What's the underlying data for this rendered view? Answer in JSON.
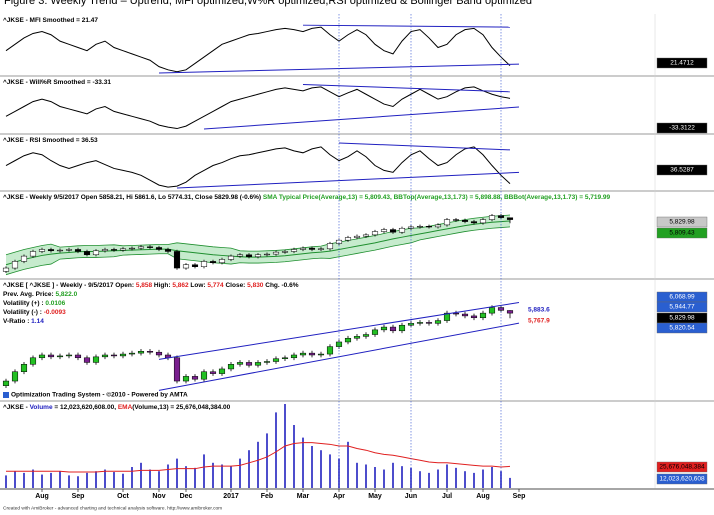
{
  "title": "Figure 3: Weekly Trend – Uptrend, MFI optimized,W%R optimized,RSI optimized & Bollinger Band optimized",
  "footer": "Created with AmiBroker - advanced charting and technical analysis software. http://www.amibroker.com",
  "x_axis": {
    "xticks": [
      {
        "value": 4,
        "label": "Aug"
      },
      {
        "value": 8,
        "label": "Sep"
      },
      {
        "value": 13,
        "label": "Oct"
      },
      {
        "value": 17,
        "label": "Nov"
      },
      {
        "value": 20,
        "label": "Dec"
      },
      {
        "value": 25,
        "label": "2017"
      },
      {
        "value": 29,
        "label": "Feb"
      },
      {
        "value": 33,
        "label": "Mar"
      },
      {
        "value": 37,
        "label": "Apr"
      },
      {
        "value": 41,
        "label": "May"
      },
      {
        "value": 45,
        "label": "Jun"
      },
      {
        "value": 49,
        "label": "Jul"
      },
      {
        "value": 53,
        "label": "Aug"
      },
      {
        "value": 57,
        "label": "Sep"
      }
    ],
    "vertical_markers": [
      37,
      45,
      55
    ]
  },
  "chart_data": [
    {
      "type": "line",
      "header": [
        [
          {
            "text": "^JKSE - MFI Smoothed = 21.47",
            "color": "#000000"
          }
        ]
      ],
      "color": "#000000",
      "ylim": [
        10,
        90
      ],
      "values": [
        45,
        55,
        65,
        72,
        75,
        70,
        60,
        55,
        50,
        45,
        55,
        60,
        50,
        45,
        40,
        35,
        30,
        20,
        15,
        12,
        15,
        25,
        35,
        45,
        55,
        60,
        65,
        70,
        72,
        75,
        78,
        80,
        78,
        75,
        80,
        82,
        70,
        60,
        70,
        78,
        70,
        55,
        45,
        40,
        60,
        75,
        78,
        65,
        50,
        55,
        70,
        78,
        80,
        70,
        50,
        35,
        21.47
      ],
      "trendlines": [
        {
          "x": [
            17,
            57
          ],
          "y": [
            10,
            24
          ]
        },
        {
          "x": [
            33,
            56
          ],
          "y": [
            85,
            82
          ]
        }
      ],
      "boxes": [
        {
          "label": "21.4712",
          "color": "#000000",
          "text_color": "#ffffff"
        }
      ]
    },
    {
      "type": "line",
      "header": [
        [
          {
            "text": "^JKSE - Will%R Smoothed = -33.31",
            "color": "#000000"
          }
        ]
      ],
      "color": "#000000",
      "ylim": [
        -100,
        0
      ],
      "values": [
        -70,
        -60,
        -50,
        -40,
        -35,
        -40,
        -50,
        -55,
        -60,
        -65,
        -55,
        -50,
        -60,
        -65,
        -70,
        -75,
        -80,
        -88,
        -92,
        -95,
        -90,
        -80,
        -70,
        -60,
        -50,
        -40,
        -35,
        -30,
        -25,
        -20,
        -15,
        -12,
        -15,
        -18,
        -12,
        -10,
        -20,
        -30,
        -22,
        -15,
        -25,
        -35,
        -45,
        -50,
        -35,
        -25,
        -15,
        -25,
        -35,
        -30,
        -20,
        -12,
        -10,
        -18,
        -25,
        -30,
        -33.31
      ],
      "trendlines": [
        {
          "x": [
            22,
            57
          ],
          "y": [
            -96,
            -51
          ]
        },
        {
          "x": [
            33,
            56
          ],
          "y": [
            -5,
            -20
          ]
        }
      ],
      "boxes": [
        {
          "label": "-33.3122",
          "color": "#000000",
          "text_color": "#ffffff"
        }
      ]
    },
    {
      "type": "line",
      "header": [
        [
          {
            "text": "^JKSE - RSI Smoothed = 36.53",
            "color": "#000000"
          }
        ]
      ],
      "color": "#000000",
      "ylim": [
        30,
        78
      ],
      "values": [
        55,
        60,
        65,
        68,
        66,
        60,
        55,
        52,
        55,
        58,
        60,
        56,
        52,
        50,
        48,
        45,
        40,
        35,
        33,
        34,
        38,
        45,
        50,
        55,
        58,
        62,
        65,
        66,
        68,
        70,
        72,
        73,
        70,
        68,
        72,
        74,
        66,
        60,
        64,
        70,
        64,
        55,
        50,
        48,
        58,
        66,
        70,
        62,
        55,
        58,
        66,
        72,
        74,
        66,
        55,
        45,
        36.53
      ],
      "trendlines": [
        {
          "x": [
            19,
            57
          ],
          "y": [
            32,
            48
          ]
        },
        {
          "x": [
            37,
            56
          ],
          "y": [
            78,
            71
          ]
        }
      ],
      "boxes": [
        {
          "label": "36.5287",
          "color": "#000000",
          "text_color": "#ffffff"
        }
      ]
    },
    {
      "type": "candlestick",
      "header": [
        [
          {
            "text": "^JKSE - Weekly 9/5/2017 Open 5858.21, Hi 5861.6, Lo 5774.31, Close 5829.98 (-0.6%) ",
            "color": "#000000"
          },
          {
            "text": "SMA Typical Price(Average,13) = 5,809.43, ",
            "color": "#22a022"
          },
          {
            "text": "BBTop(Average,13,1.73) = 5,898.88, ",
            "color": "#22a022"
          },
          {
            "text": "BBBot(Average,13,1.73) = 5,719.99",
            "color": "#22a022"
          }
        ]
      ],
      "ylim": [
        4950,
        6050
      ],
      "up_color": "#ffffff",
      "down_color": "#000000",
      "band_color": "#b8e6c0",
      "line_color": "#1f8f2f",
      "open": [
        5050,
        5100,
        5200,
        5280,
        5350,
        5380,
        5360,
        5370,
        5380,
        5350,
        5300,
        5360,
        5380,
        5370,
        5390,
        5400,
        5420,
        5410,
        5380,
        5350,
        5100,
        5150,
        5120,
        5200,
        5180,
        5230,
        5280,
        5300,
        5270,
        5300,
        5310,
        5340,
        5350,
        5380,
        5400,
        5380,
        5390,
        5470,
        5520,
        5560,
        5580,
        5600,
        5650,
        5680,
        5640,
        5700,
        5720,
        5730,
        5720,
        5750,
        5830,
        5820,
        5800,
        5780,
        5830,
        5890,
        5858.21
      ],
      "high": [
        5125,
        5225,
        5305,
        5375,
        5405,
        5405,
        5395,
        5405,
        5405,
        5375,
        5385,
        5405,
        5405,
        5415,
        5425,
        5445,
        5445,
        5435,
        5405,
        5375,
        5175,
        5175,
        5225,
        5225,
        5255,
        5305,
        5325,
        5325,
        5325,
        5335,
        5365,
        5375,
        5405,
        5425,
        5425,
        5415,
        5495,
        5545,
        5585,
        5605,
        5625,
        5675,
        5705,
        5705,
        5725,
        5745,
        5755,
        5755,
        5775,
        5855,
        5855,
        5845,
        5825,
        5855,
        5915,
        5915,
        5861.6
      ],
      "low": [
        5025,
        5075,
        5175,
        5255,
        5325,
        5335,
        5335,
        5345,
        5325,
        5275,
        5275,
        5335,
        5345,
        5345,
        5365,
        5375,
        5385,
        5355,
        5325,
        5075,
        5075,
        5095,
        5095,
        5155,
        5155,
        5205,
        5255,
        5245,
        5245,
        5275,
        5285,
        5315,
        5325,
        5355,
        5355,
        5355,
        5365,
        5445,
        5495,
        5535,
        5555,
        5575,
        5625,
        5615,
        5615,
        5675,
        5695,
        5695,
        5695,
        5725,
        5795,
        5775,
        5755,
        5755,
        5805,
        5835,
        5774.31
      ],
      "close": [
        5100,
        5200,
        5280,
        5350,
        5380,
        5360,
        5370,
        5380,
        5350,
        5300,
        5360,
        5380,
        5370,
        5390,
        5400,
        5420,
        5410,
        5380,
        5350,
        5100,
        5150,
        5120,
        5200,
        5180,
        5230,
        5280,
        5300,
        5270,
        5300,
        5310,
        5340,
        5350,
        5380,
        5400,
        5380,
        5390,
        5470,
        5520,
        5560,
        5580,
        5600,
        5650,
        5680,
        5640,
        5700,
        5720,
        5730,
        5720,
        5750,
        5830,
        5820,
        5800,
        5780,
        5830,
        5890,
        5860,
        5829.98
      ],
      "sma": [
        5150,
        5190,
        5230,
        5260,
        5290,
        5310,
        5325,
        5335,
        5345,
        5350,
        5350,
        5355,
        5360,
        5365,
        5370,
        5375,
        5380,
        5385,
        5385,
        5360,
        5345,
        5330,
        5315,
        5300,
        5290,
        5280,
        5270,
        5265,
        5265,
        5270,
        5275,
        5285,
        5300,
        5315,
        5330,
        5340,
        5355,
        5380,
        5405,
        5430,
        5455,
        5480,
        5510,
        5540,
        5565,
        5590,
        5615,
        5640,
        5665,
        5690,
        5715,
        5740,
        5760,
        5775,
        5790,
        5800,
        5809.43
      ],
      "bb_top": [
        5300,
        5340,
        5380,
        5410,
        5440,
        5460,
        5415,
        5425,
        5435,
        5440,
        5440,
        5445,
        5450,
        5435,
        5440,
        5445,
        5450,
        5455,
        5455,
        5480,
        5465,
        5450,
        5435,
        5420,
        5410,
        5400,
        5360,
        5355,
        5355,
        5360,
        5365,
        5375,
        5390,
        5405,
        5420,
        5430,
        5465,
        5490,
        5515,
        5540,
        5565,
        5590,
        5620,
        5650,
        5675,
        5700,
        5705,
        5730,
        5755,
        5780,
        5805,
        5830,
        5850,
        5865,
        5880,
        5890,
        5898.88
      ],
      "bb_bottom": [
        5000,
        5040,
        5080,
        5110,
        5140,
        5160,
        5235,
        5245,
        5255,
        5260,
        5260,
        5265,
        5270,
        5295,
        5300,
        5305,
        5310,
        5315,
        5315,
        5240,
        5225,
        5210,
        5195,
        5180,
        5170,
        5160,
        5180,
        5175,
        5175,
        5180,
        5185,
        5195,
        5210,
        5225,
        5240,
        5250,
        5245,
        5270,
        5295,
        5320,
        5345,
        5370,
        5400,
        5430,
        5455,
        5480,
        5525,
        5550,
        5575,
        5600,
        5625,
        5650,
        5670,
        5685,
        5700,
        5710,
        5719.99
      ],
      "boxes": [
        {
          "label": "5,829.98",
          "color": "#c8c8c8",
          "text_color": "#000000"
        },
        {
          "label": "5,809.43",
          "color": "#22a022",
          "text_color": "#000000"
        }
      ]
    },
    {
      "type": "candlestick",
      "header": [
        [
          {
            "text": "^JKSE [ ^JKSE ] - Weekly - 9/5/2017 Open: ",
            "color": "#000000"
          },
          {
            "text": "5,858",
            "color": "#e02020"
          },
          {
            "text": " High: ",
            "color": "#000000"
          },
          {
            "text": "5,862",
            "color": "#e02020"
          },
          {
            "text": " Low: ",
            "color": "#000000"
          },
          {
            "text": "5,774",
            "color": "#e02020"
          },
          {
            "text": " Close: ",
            "color": "#000000"
          },
          {
            "text": "5,830",
            "color": "#e02020"
          },
          {
            "text": " Chg. -0.6%",
            "color": "#000000"
          }
        ],
        [
          {
            "text": "Prev. Avg. Price: ",
            "color": "#000000"
          },
          {
            "text": "5,822.0",
            "color": "#22a022"
          }
        ],
        [
          {
            "text": "Volatility (+) : ",
            "color": "#000000"
          },
          {
            "text": "0.0106",
            "color": "#22a022"
          }
        ],
        [
          {
            "text": "Volatility (-) : ",
            "color": "#000000"
          },
          {
            "text": "-0.0093",
            "color": "#e02020"
          }
        ],
        [
          {
            "text": "V-Ratio : ",
            "color": "#000000"
          },
          {
            "text": "1.14",
            "color": "#2020c0"
          }
        ]
      ],
      "ylim": [
        4950,
        6100
      ],
      "up_color": "#22c022",
      "down_color": "#7a1f8f",
      "trendlines": [
        {
          "x": [
            17,
            57
          ],
          "y": [
            5000,
            5722
          ]
        },
        {
          "x": [
            17,
            57
          ],
          "y": [
            5333,
            5944
          ]
        }
      ],
      "annotations": [
        {
          "text": "5,883.6",
          "color": "#2020c0"
        },
        {
          "text": "5,767.9",
          "color": "#e02020"
        }
      ],
      "note": "Optimization Trading System - ©2010 - Powered by AMTA",
      "boxes": [
        {
          "label": "6,068.99",
          "color": "#2a5fd0",
          "text_color": "#ffffff"
        },
        {
          "label": "5,944.77",
          "color": "#2a5fd0",
          "text_color": "#ffffff"
        },
        {
          "label": "5,829.98",
          "color": "#000000",
          "text_color": "#ffffff"
        },
        {
          "label": "5,820.54",
          "color": "#2a5fd0",
          "text_color": "#ffffff"
        }
      ]
    },
    {
      "type": "bar",
      "header": [
        [
          {
            "text": "^JKSE - ",
            "color": "#000000"
          },
          {
            "text": "Volume",
            "color": "#2020c0"
          },
          {
            "text": " = 12,023,620,608.00, ",
            "color": "#000000"
          },
          {
            "text": "EMA",
            "color": "#e02020"
          },
          {
            "text": "(Volume,13) = 25,676,048,384.00",
            "color": "#000000"
          }
        ]
      ],
      "ylim": [
        0,
        100000000000.0
      ],
      "color": "#2020c0",
      "ema_color": "#e02020",
      "values": [
        15000000000.0,
        20000000000.0,
        18000000000.0,
        22000000000.0,
        16000000000.0,
        18000000000.0,
        20000000000.0,
        15000000000.0,
        14000000000.0,
        18000000000.0,
        20000000000.0,
        22000000000.0,
        19000000000.0,
        17000000000.0,
        25000000000.0,
        30000000000.0,
        22000000000.0,
        20000000000.0,
        28000000000.0,
        35000000000.0,
        26000000000.0,
        24000000000.0,
        40000000000.0,
        30000000000.0,
        28000000000.0,
        26000000000.0,
        35000000000.0,
        45000000000.0,
        55000000000.0,
        65000000000.0,
        90000000000.0,
        100000000000.0,
        75000000000.0,
        60000000000.0,
        50000000000.0,
        45000000000.0,
        40000000000.0,
        35000000000.0,
        55000000000.0,
        30000000000.0,
        28000000000.0,
        25000000000.0,
        22000000000.0,
        30000000000.0,
        26000000000.0,
        24000000000.0,
        20000000000.0,
        18000000000.0,
        22000000000.0,
        28000000000.0,
        24000000000.0,
        20000000000.0,
        18000000000.0,
        22000000000.0,
        25000000000.0,
        20000000000.0,
        12023620608
      ],
      "ema": [
        20000000000.0,
        20000000000.0,
        20000000000.0,
        20000000000.0,
        20000000000.0,
        20000000000.0,
        20000000000.0,
        19000000000.0,
        19000000000.0,
        19000000000.0,
        19000000000.0,
        20000000000.0,
        20000000000.0,
        20000000000.0,
        20000000000.0,
        21000000000.0,
        21000000000.0,
        21000000000.0,
        22000000000.0,
        23000000000.0,
        23000000000.0,
        23000000000.0,
        25000000000.0,
        26000000000.0,
        26000000000.0,
        26000000000.0,
        27000000000.0,
        30000000000.0,
        33000000000.0,
        37000000000.0,
        43000000000.0,
        50000000000.0,
        53000000000.0,
        54000000000.0,
        54000000000.0,
        53000000000.0,
        52000000000.0,
        50000000000.0,
        50000000000.0,
        47000000000.0,
        45000000000.0,
        42000000000.0,
        40000000000.0,
        39000000000.0,
        37000000000.0,
        35000000000.0,
        33000000000.0,
        31000000000.0,
        30000000000.0,
        30000000000.0,
        29000000000.0,
        28000000000.0,
        27000000000.0,
        26000000000.0,
        26000000000.0,
        25000000000.0,
        25676048384
      ],
      "boxes": [
        {
          "label": "25,676,048,384",
          "color": "#e02020",
          "text_color": "#000000"
        },
        {
          "label": "12,023,620,608",
          "color": "#2a5fd0",
          "text_color": "#ffffff"
        }
      ]
    }
  ]
}
